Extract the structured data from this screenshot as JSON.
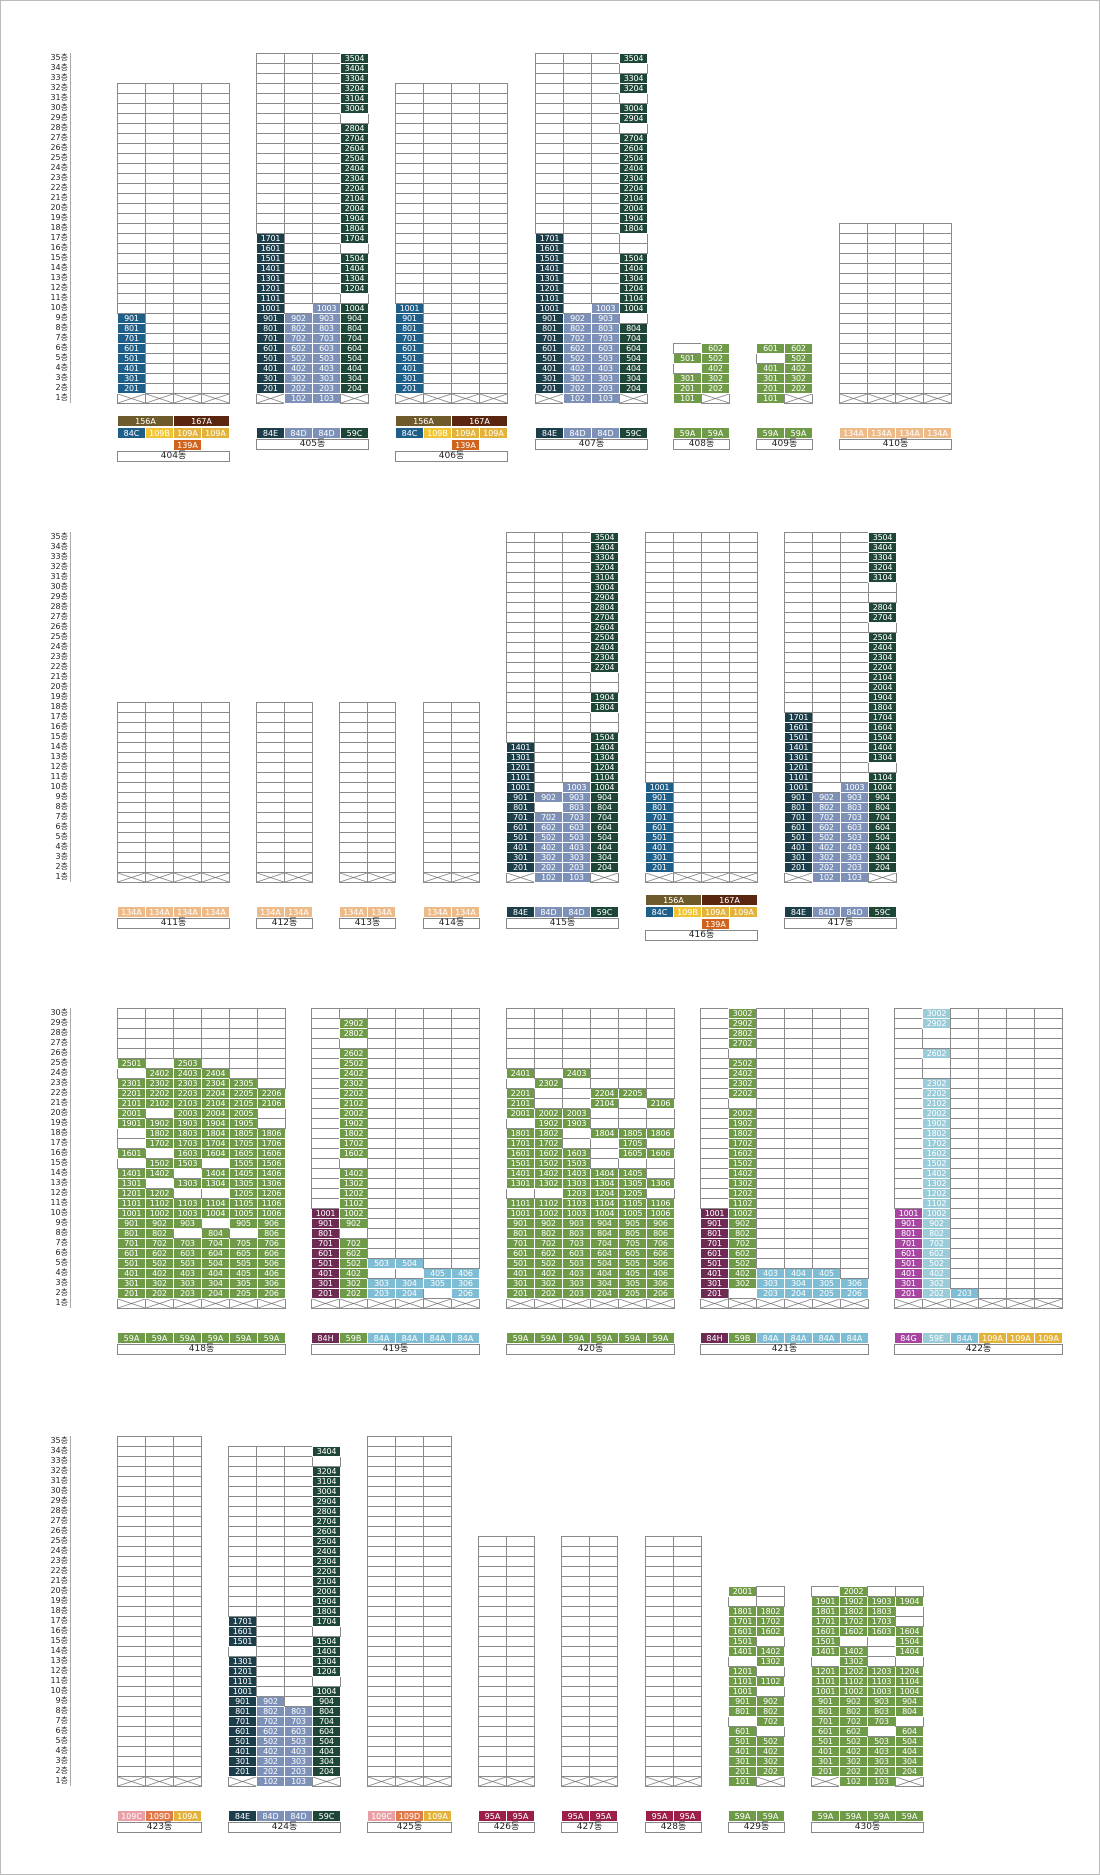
{
  "floor_suffix": "층",
  "colors": {
    "84C": "#1e5f8a",
    "84D": "#7d91b8",
    "84E": "#1c3d4a",
    "59C": "#1e4636",
    "59A": "#6f9a47",
    "59B": "#6f9a47",
    "59E": "#9acbd8",
    "84A": "#7ebdd3",
    "84H": "#6e2a52",
    "84G": "#a646a0",
    "109A": "#e2b23a",
    "109B": "#f0c531",
    "109C": "#e8a0a6",
    "109D": "#e07a4a",
    "134A": "#edbb8a",
    "139A": "#d0641e",
    "156A": "#6e5a2a",
    "167A": "#5a2610",
    "95A": "#9c1f4a",
    "empty": "#ffffff"
  },
  "buildings": [
    {
      "id": "404",
      "label": "404동",
      "height": 32,
      "units": [
        "1",
        "2",
        "3",
        "4"
      ],
      "types": [
        "84C",
        "109B",
        "109A",
        "109A"
      ],
      "extra_types": [
        [
          "156A",
          "167A"
        ],
        [
          "139A"
        ]
      ],
      "lit": {
        "1": [
          2,
          3,
          4,
          5,
          6,
          7,
          8,
          9
        ]
      }
    },
    {
      "id": "405",
      "label": "405동",
      "height": 35,
      "units": [
        "1",
        "2",
        "3",
        "4"
      ],
      "types": [
        "84E",
        "84D",
        "84D",
        "59C"
      ],
      "lit": {
        "1": [
          2,
          3,
          4,
          5,
          6,
          7,
          8,
          9,
          10,
          11,
          12,
          13,
          14,
          15,
          16,
          17
        ],
        "2": [
          1,
          2,
          3,
          4,
          5,
          6,
          7,
          8,
          9
        ],
        "3": [
          1,
          2,
          3,
          4,
          5,
          6,
          7,
          8,
          9,
          10
        ],
        "4": [
          2,
          3,
          4,
          5,
          6,
          7,
          8,
          9,
          10,
          12,
          13,
          14,
          15,
          17,
          18,
          19,
          20,
          21,
          22,
          23,
          24,
          25,
          26,
          27,
          28,
          30,
          31,
          32,
          33,
          34,
          35
        ]
      }
    },
    {
      "id": "406",
      "label": "406동",
      "height": 32,
      "units": [
        "1",
        "2",
        "3",
        "4"
      ],
      "types": [
        "84C",
        "109B",
        "109A",
        "109A"
      ],
      "extra_types": [
        [
          "156A",
          "167A"
        ],
        [
          "139A"
        ]
      ],
      "lit": {
        "1": [
          2,
          3,
          4,
          5,
          6,
          7,
          8,
          9,
          10
        ]
      }
    },
    {
      "id": "407",
      "label": "407동",
      "height": 35,
      "units": [
        "1",
        "2",
        "3",
        "4"
      ],
      "types": [
        "84E",
        "84D",
        "84D",
        "59C"
      ],
      "lit": {
        "1": [
          2,
          3,
          4,
          5,
          6,
          7,
          8,
          9,
          10,
          11,
          12,
          13,
          14,
          15,
          16,
          17
        ],
        "2": [
          1,
          2,
          3,
          4,
          5,
          6,
          7,
          8,
          9
        ],
        "3": [
          1,
          2,
          3,
          4,
          5,
          6,
          7,
          8,
          9,
          10
        ],
        "4": [
          2,
          3,
          4,
          5,
          6,
          7,
          8,
          10,
          11,
          12,
          13,
          14,
          15,
          18,
          19,
          20,
          21,
          22,
          23,
          24,
          25,
          26,
          27,
          29,
          30,
          32,
          33,
          35
        ]
      }
    },
    {
      "id": "408",
      "label": "408동",
      "height": 6,
      "units": [
        "1",
        "2"
      ],
      "types": [
        "59A",
        "59A"
      ],
      "lit": {
        "1": [
          1,
          2,
          3,
          5
        ],
        "2": [
          2,
          3,
          4,
          5,
          6
        ]
      }
    },
    {
      "id": "409",
      "label": "409동",
      "height": 6,
      "units": [
        "1",
        "2"
      ],
      "types": [
        "59A",
        "59A"
      ],
      "lit": {
        "1": [
          1,
          2,
          3,
          4,
          6
        ],
        "2": [
          2,
          3,
          4,
          5,
          6
        ]
      }
    },
    {
      "id": "410",
      "label": "410동",
      "height": 18,
      "units": [
        "1",
        "2",
        "3",
        "4"
      ],
      "types": [
        "134A",
        "134A",
        "134A",
        "134A"
      ],
      "lit": {}
    },
    {
      "id": "411",
      "label": "411동",
      "height": 18,
      "units": [
        "1",
        "2",
        "3",
        "4"
      ],
      "types": [
        "134A",
        "134A",
        "134A",
        "134A"
      ],
      "lit": {}
    },
    {
      "id": "412",
      "label": "412동",
      "height": 18,
      "units": [
        "1",
        "2"
      ],
      "types": [
        "134A",
        "134A"
      ],
      "lit": {}
    },
    {
      "id": "413",
      "label": "413동",
      "height": 18,
      "units": [
        "1",
        "2"
      ],
      "types": [
        "134A",
        "134A"
      ],
      "lit": {}
    },
    {
      "id": "414",
      "label": "414동",
      "height": 18,
      "units": [
        "1",
        "2"
      ],
      "types": [
        "134A",
        "134A"
      ],
      "lit": {}
    },
    {
      "id": "415",
      "label": "415동",
      "height": 35,
      "units": [
        "1",
        "2",
        "3",
        "4"
      ],
      "types": [
        "84E",
        "84D",
        "84D",
        "59C"
      ],
      "lit": {
        "1": [
          2,
          3,
          4,
          5,
          6,
          7,
          8,
          9,
          10,
          11,
          12,
          13,
          14
        ],
        "2": [
          1,
          2,
          3,
          4,
          5,
          6,
          7,
          9
        ],
        "3": [
          1,
          2,
          3,
          4,
          5,
          6,
          7,
          8,
          9,
          10
        ],
        "4": [
          2,
          3,
          4,
          5,
          6,
          7,
          8,
          9,
          10,
          11,
          12,
          13,
          14,
          15,
          18,
          19,
          22,
          23,
          24,
          25,
          26,
          27,
          28,
          29,
          30,
          31,
          32,
          33,
          34,
          35
        ]
      }
    },
    {
      "id": "416",
      "label": "416동",
      "height": 35,
      "units": [
        "1",
        "2",
        "3",
        "4"
      ],
      "types": [
        "84C",
        "109B",
        "109A",
        "109A"
      ],
      "extra_types": [
        [
          "156A",
          "167A"
        ],
        [
          "139A"
        ]
      ],
      "lit": {
        "1": [
          2,
          3,
          4,
          5,
          6,
          7,
          8,
          9,
          10
        ]
      }
    },
    {
      "id": "417",
      "label": "417동",
      "height": 35,
      "units": [
        "1",
        "2",
        "3",
        "4"
      ],
      "types": [
        "84E",
        "84D",
        "84D",
        "59C"
      ],
      "lit": {
        "1": [
          2,
          3,
          4,
          5,
          6,
          7,
          8,
          9,
          10,
          11,
          12,
          13,
          14,
          15,
          16,
          17
        ],
        "2": [
          1,
          2,
          3,
          4,
          5,
          6,
          7,
          8,
          9
        ],
        "3": [
          1,
          2,
          3,
          4,
          5,
          6,
          7,
          8,
          9,
          10
        ],
        "4": [
          2,
          3,
          4,
          5,
          6,
          7,
          8,
          9,
          10,
          11,
          13,
          14,
          15,
          16,
          17,
          18,
          19,
          20,
          21,
          22,
          23,
          24,
          25,
          27,
          28,
          31,
          32,
          33,
          34,
          35
        ]
      }
    },
    {
      "id": "418",
      "label": "418동",
      "height": 30,
      "units": [
        "1",
        "2",
        "3",
        "4",
        "5",
        "6"
      ],
      "types": [
        "59A",
        "59A",
        "59A",
        "59A",
        "59A",
        "59A"
      ],
      "lit": {
        "1": [
          2,
          3,
          4,
          5,
          6,
          7,
          8,
          9,
          10,
          11,
          12,
          13,
          14,
          16,
          19,
          20,
          21,
          22,
          23,
          25
        ],
        "2": [
          2,
          3,
          4,
          5,
          6,
          7,
          8,
          9,
          10,
          11,
          12,
          14,
          15,
          17,
          18,
          19,
          21,
          22,
          23,
          24
        ],
        "3": [
          2,
          3,
          4,
          5,
          6,
          7,
          9,
          10,
          11,
          13,
          15,
          16,
          17,
          18,
          19,
          20,
          21,
          22,
          23,
          24,
          25
        ],
        "4": [
          2,
          3,
          4,
          5,
          6,
          7,
          8,
          10,
          11,
          13,
          14,
          16,
          17,
          18,
          19,
          20,
          21,
          22,
          23,
          24
        ],
        "5": [
          2,
          3,
          4,
          5,
          6,
          7,
          9,
          10,
          11,
          12,
          13,
          14,
          15,
          16,
          17,
          18,
          19,
          20,
          21,
          22,
          23
        ],
        "6": [
          2,
          3,
          4,
          5,
          6,
          7,
          8,
          9,
          10,
          11,
          12,
          13,
          14,
          15,
          16,
          17,
          18,
          21,
          22
        ]
      }
    },
    {
      "id": "419",
      "label": "419동",
      "height": 30,
      "units": [
        "1",
        "2",
        "3",
        "4",
        "5",
        "6"
      ],
      "types": [
        "84H",
        "59B",
        "84A",
        "84A",
        "84A",
        "84A"
      ],
      "lit": {
        "1": [
          2,
          3,
          4,
          5,
          6,
          7,
          8,
          9,
          10
        ],
        "2": [
          2,
          3,
          4,
          5,
          6,
          7,
          9,
          10,
          11,
          12,
          13,
          14,
          16,
          17,
          18,
          19,
          20,
          21,
          22,
          23,
          24,
          25,
          26,
          28,
          29
        ],
        "3": [
          2,
          3,
          5
        ],
        "4": [
          2,
          3,
          5
        ],
        "5": [
          3,
          4
        ],
        "6": [
          2,
          3,
          4
        ]
      }
    },
    {
      "id": "420",
      "label": "420동",
      "height": 30,
      "units": [
        "1",
        "2",
        "3",
        "4",
        "5",
        "6"
      ],
      "types": [
        "59A",
        "59A",
        "59A",
        "59A",
        "59A",
        "59A"
      ],
      "lit": {
        "1": [
          2,
          3,
          4,
          5,
          6,
          7,
          8,
          9,
          10,
          11,
          13,
          14,
          15,
          16,
          17,
          18,
          20,
          21,
          22,
          24
        ],
        "2": [
          2,
          3,
          4,
          5,
          6,
          7,
          8,
          9,
          10,
          11,
          13,
          14,
          15,
          16,
          17,
          18,
          19,
          20,
          23
        ],
        "3": [
          2,
          3,
          4,
          5,
          6,
          7,
          8,
          9,
          10,
          11,
          12,
          13,
          14,
          15,
          16,
          19,
          20,
          24
        ],
        "4": [
          2,
          3,
          4,
          5,
          6,
          7,
          8,
          9,
          10,
          11,
          12,
          13,
          14,
          18,
          21,
          22
        ],
        "5": [
          2,
          3,
          4,
          5,
          6,
          7,
          8,
          9,
          10,
          11,
          12,
          13,
          14,
          16,
          17,
          18,
          22
        ],
        "6": [
          2,
          3,
          4,
          5,
          6,
          7,
          8,
          9,
          10,
          11,
          13,
          16,
          18,
          21
        ]
      }
    },
    {
      "id": "421",
      "label": "421동",
      "height": 30,
      "units": [
        "1",
        "2",
        "3",
        "4",
        "5",
        "6"
      ],
      "types": [
        "84H",
        "59B",
        "84A",
        "84A",
        "84A",
        "84A"
      ],
      "lit": {
        "1": [
          2,
          3,
          4,
          5,
          6,
          7,
          8,
          9,
          10
        ],
        "2": [
          3,
          4,
          5,
          6,
          7,
          8,
          9,
          10,
          11,
          12,
          13,
          14,
          15,
          16,
          17,
          18,
          19,
          20,
          22,
          23,
          24,
          25,
          27,
          28,
          29,
          30
        ],
        "3": [
          2,
          3,
          4
        ],
        "4": [
          2,
          3,
          4
        ],
        "5": [
          2,
          3,
          4
        ],
        "6": [
          2,
          3
        ]
      }
    },
    {
      "id": "422",
      "label": "422동",
      "height": 30,
      "units": [
        "1",
        "2",
        "3",
        "4",
        "5",
        "6"
      ],
      "types": [
        "84G",
        "59E",
        "84A",
        "109A",
        "109A",
        "109A"
      ],
      "lit": {
        "1": [
          2,
          3,
          4,
          5,
          6,
          7,
          8,
          9,
          10
        ],
        "2": [
          2,
          3,
          4,
          5,
          6,
          7,
          8,
          9,
          10,
          11,
          12,
          13,
          14,
          15,
          16,
          17,
          18,
          19,
          20,
          21,
          22,
          23,
          26,
          29,
          30
        ],
        "3": [
          2
        ]
      }
    },
    {
      "id": "423",
      "label": "423동",
      "height": 35,
      "units": [
        "1",
        "2",
        "3"
      ],
      "types": [
        "109C",
        "109D",
        "109A"
      ],
      "lit": {}
    },
    {
      "id": "424",
      "label": "424동",
      "height": 34,
      "units": [
        "1",
        "2",
        "3",
        "4"
      ],
      "types": [
        "84E",
        "84D",
        "84D",
        "59C"
      ],
      "lit": {
        "1": [
          2,
          3,
          4,
          5,
          6,
          7,
          8,
          9,
          10,
          11,
          12,
          13,
          15,
          16,
          17
        ],
        "2": [
          1,
          2,
          3,
          4,
          5,
          6,
          7,
          8,
          9
        ],
        "3": [
          1,
          2,
          3,
          4,
          5,
          6,
          7,
          8
        ],
        "4": [
          2,
          3,
          4,
          5,
          6,
          7,
          8,
          9,
          10,
          12,
          13,
          14,
          15,
          17,
          18,
          19,
          20,
          21,
          22,
          23,
          24,
          25,
          26,
          27,
          28,
          29,
          30,
          31,
          32,
          34
        ]
      }
    },
    {
      "id": "425",
      "label": "425동",
      "height": 35,
      "units": [
        "1",
        "2",
        "3"
      ],
      "types": [
        "109C",
        "109D",
        "109A"
      ],
      "lit": {}
    },
    {
      "id": "426",
      "label": "426동",
      "height": 25,
      "units": [
        "1",
        "2"
      ],
      "types": [
        "95A",
        "95A"
      ],
      "lit": {}
    },
    {
      "id": "427",
      "label": "427동",
      "height": 25,
      "units": [
        "1",
        "2"
      ],
      "types": [
        "95A",
        "95A"
      ],
      "lit": {}
    },
    {
      "id": "428",
      "label": "428동",
      "height": 25,
      "units": [
        "1",
        "2"
      ],
      "types": [
        "95A",
        "95A"
      ],
      "lit": {}
    },
    {
      "id": "429",
      "label": "429동",
      "height": 20,
      "units": [
        "1",
        "2"
      ],
      "types": [
        "59A",
        "59A"
      ],
      "lit": {
        "1": [
          1,
          2,
          3,
          4,
          5,
          6,
          8,
          9,
          10,
          11,
          12,
          14,
          15,
          16,
          17,
          18,
          20
        ],
        "2": [
          2,
          3,
          4,
          5,
          7,
          8,
          9,
          11,
          13,
          14,
          16,
          17,
          18
        ]
      }
    },
    {
      "id": "430",
      "label": "430동",
      "height": 20,
      "units": [
        "1",
        "2",
        "3",
        "4"
      ],
      "types": [
        "59A",
        "59A",
        "59A",
        "59A"
      ],
      "lit": {
        "1": [
          2,
          3,
          4,
          5,
          6,
          7,
          8,
          9,
          10,
          11,
          12,
          14,
          15,
          16,
          17,
          18,
          19
        ],
        "2": [
          1,
          2,
          3,
          4,
          5,
          6,
          7,
          8,
          9,
          10,
          11,
          12,
          13,
          14,
          16,
          17,
          18,
          19,
          20
        ],
        "3": [
          1,
          2,
          3,
          4,
          5,
          7,
          8,
          9,
          10,
          11,
          12,
          16,
          17,
          18,
          19
        ],
        "4": [
          2,
          3,
          4,
          5,
          6,
          8,
          9,
          10,
          11,
          12,
          14,
          15,
          16,
          19
        ]
      }
    }
  ]
}
